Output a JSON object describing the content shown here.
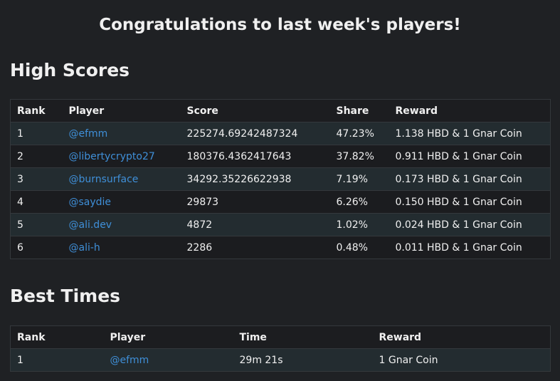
{
  "header": {
    "title": "Congratulations to last week's players!"
  },
  "sections": [
    {
      "heading": "High Scores",
      "table": {
        "columns": [
          "Rank",
          "Player",
          "Score",
          "Share",
          "Reward"
        ],
        "rows": [
          [
            "1",
            "@efmm",
            "225274.69242487324",
            "47.23%",
            "1.138 HBD & 1 Gnar Coin"
          ],
          [
            "2",
            "@libertycrypto27",
            "180376.4362417643",
            "37.82%",
            "0.911 HBD & 1 Gnar Coin"
          ],
          [
            "3",
            "@burnsurface",
            "34292.35226622938",
            "7.19%",
            "0.173 HBD & 1 Gnar Coin"
          ],
          [
            "4",
            "@saydie",
            "29873",
            "6.26%",
            "0.150 HBD & 1 Gnar Coin"
          ],
          [
            "5",
            "@ali.dev",
            "4872",
            "1.02%",
            "0.024 HBD & 1 Gnar Coin"
          ],
          [
            "6",
            "@ali-h",
            "2286",
            "0.48%",
            "0.011 HBD & 1 Gnar Coin"
          ]
        ]
      }
    },
    {
      "heading": "Best Times",
      "table": {
        "columns": [
          "Rank",
          "Player",
          "Time",
          "Reward"
        ],
        "rows": [
          [
            "1",
            "@efmm",
            "29m 21s",
            "1 Gnar Coin"
          ]
        ]
      }
    }
  ]
}
